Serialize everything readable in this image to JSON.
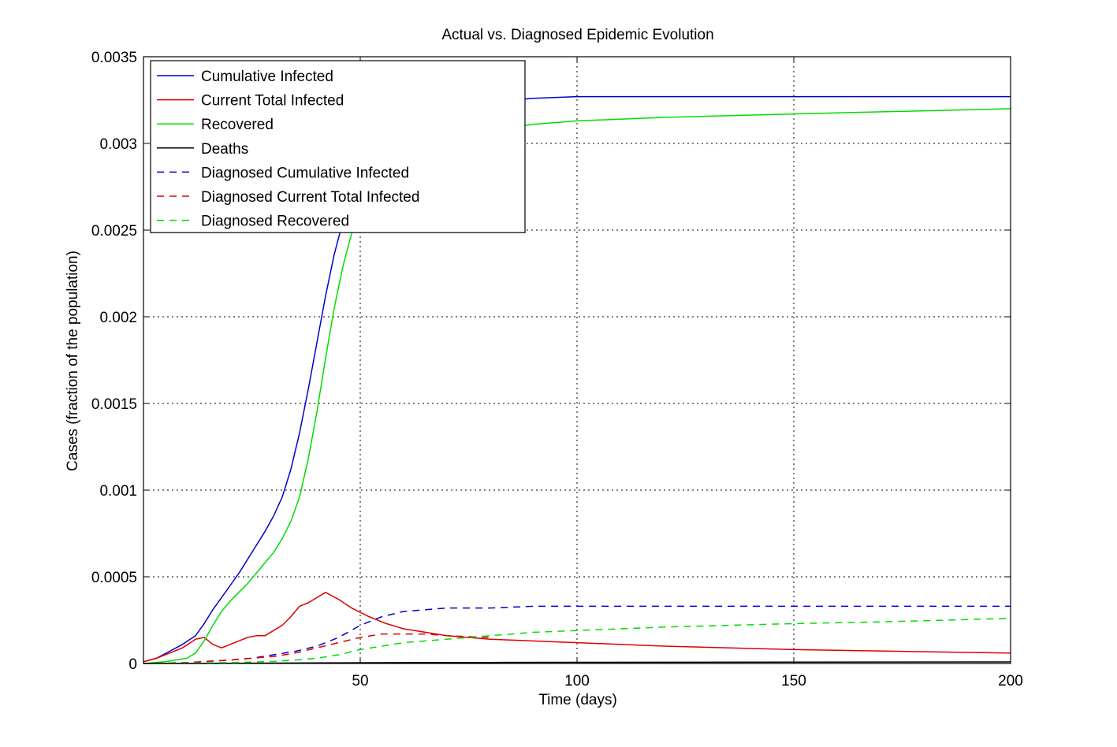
{
  "chart_data": {
    "type": "line",
    "title": "Actual vs. Diagnosed Epidemic Evolution",
    "xlabel": "Time (days)",
    "ylabel": "Cases (fraction of the population)",
    "xlim": [
      0,
      200
    ],
    "ylim": [
      0,
      0.0035
    ],
    "xticks": [
      50,
      100,
      150,
      200
    ],
    "xtick_labels": [
      "50",
      "100",
      "150",
      "200"
    ],
    "yticks": [
      0,
      0.0005,
      0.001,
      0.0015,
      0.002,
      0.0025,
      0.003,
      0.0035
    ],
    "ytick_labels": [
      "0",
      "0.0005",
      "0.001",
      "0.0015",
      "0.002",
      "0.0025",
      "0.003",
      "0.0035"
    ],
    "grid": true,
    "legend_position": "top-left",
    "series": [
      {
        "name": "Cumulative Infected",
        "color": "#0000cc",
        "dash": "solid",
        "x": [
          0,
          3,
          6,
          9,
          12,
          14,
          16,
          18,
          20,
          22,
          24,
          26,
          28,
          30,
          32,
          34,
          36,
          38,
          40,
          42,
          44,
          46,
          48,
          50,
          53,
          56,
          60,
          65,
          70,
          75,
          80,
          90,
          100,
          120,
          150,
          200
        ],
        "y": [
          1e-05,
          3e-05,
          7e-05,
          0.00011,
          0.00016,
          0.00023,
          0.00031,
          0.00038,
          0.00045,
          0.00052,
          0.0006,
          0.00068,
          0.00076,
          0.00085,
          0.00096,
          0.00112,
          0.00133,
          0.00158,
          0.00185,
          0.00212,
          0.00236,
          0.00255,
          0.0027,
          0.0028,
          0.00292,
          0.003,
          0.00308,
          0.00315,
          0.00319,
          0.00322,
          0.00324,
          0.00326,
          0.00327,
          0.00327,
          0.00327,
          0.00327
        ]
      },
      {
        "name": "Current Total Infected",
        "color": "#dd0000",
        "dash": "solid",
        "x": [
          0,
          3,
          6,
          9,
          12,
          14,
          16,
          18,
          20,
          22,
          24,
          26,
          28,
          30,
          32,
          34,
          36,
          38,
          40,
          42,
          45,
          48,
          52,
          56,
          60,
          70,
          80,
          100,
          120,
          150,
          200
        ],
        "y": [
          1e-05,
          3e-05,
          6e-05,
          9e-05,
          0.00014,
          0.00015,
          0.00011,
          9e-05,
          0.00011,
          0.00013,
          0.00015,
          0.00016,
          0.00016,
          0.00019,
          0.00022,
          0.00027,
          0.00033,
          0.00035,
          0.00038,
          0.00041,
          0.00037,
          0.00032,
          0.00027,
          0.00023,
          0.0002,
          0.00016,
          0.00014,
          0.00012,
          0.0001,
          8e-05,
          6e-05
        ]
      },
      {
        "name": "Recovered",
        "color": "#00dd00",
        "dash": "solid",
        "x": [
          0,
          5,
          10,
          12,
          14,
          16,
          18,
          20,
          22,
          24,
          26,
          28,
          30,
          32,
          34,
          36,
          38,
          40,
          42,
          44,
          46,
          48,
          50,
          53,
          56,
          60,
          65,
          70,
          80,
          90,
          100,
          120,
          150,
          200
        ],
        "y": [
          0,
          1e-05,
          3e-05,
          6e-05,
          0.00013,
          0.00022,
          0.0003,
          0.00036,
          0.00041,
          0.00046,
          0.00052,
          0.00058,
          0.00064,
          0.00072,
          0.00082,
          0.00096,
          0.00118,
          0.00145,
          0.00176,
          0.00205,
          0.00229,
          0.00248,
          0.00262,
          0.00276,
          0.00285,
          0.00293,
          0.00299,
          0.00303,
          0.00308,
          0.00311,
          0.00313,
          0.00315,
          0.00317,
          0.0032
        ]
      },
      {
        "name": "Deaths",
        "color": "#000000",
        "dash": "solid",
        "x": [
          0,
          20,
          40,
          60,
          80,
          100,
          150,
          200
        ],
        "y": [
          0,
          1e-06,
          3e-06,
          5e-06,
          6e-06,
          7e-06,
          8e-06,
          9e-06
        ]
      },
      {
        "name": "Diagnosed Cumulative Infected",
        "color": "#0000cc",
        "dash": "dashed",
        "x": [
          0,
          10,
          20,
          25,
          30,
          35,
          40,
          45,
          50,
          55,
          60,
          65,
          70,
          80,
          90,
          100,
          150,
          200
        ],
        "y": [
          0,
          5e-06,
          2e-05,
          3e-05,
          5e-05,
          7e-05,
          0.0001,
          0.00015,
          0.00022,
          0.00027,
          0.0003,
          0.00031,
          0.00032,
          0.00032,
          0.00033,
          0.00033,
          0.00033,
          0.00033
        ]
      },
      {
        "name": "Diagnosed Current Total Infected",
        "color": "#dd0000",
        "dash": "dashed",
        "x": [
          0,
          10,
          20,
          25,
          30,
          35,
          40,
          45,
          50,
          55,
          60,
          65,
          70,
          80
        ],
        "y": [
          0,
          5e-06,
          2e-05,
          3e-05,
          4e-05,
          6e-05,
          9e-05,
          0.00012,
          0.00015,
          0.00017,
          0.00017,
          0.00017,
          0.00016,
          0.00015
        ]
      },
      {
        "name": "Diagnosed Recovered",
        "color": "#00dd00",
        "dash": "dashed",
        "x": [
          0,
          20,
          30,
          35,
          40,
          45,
          50,
          55,
          60,
          65,
          70,
          75,
          80,
          90,
          100,
          120,
          150,
          170,
          200
        ],
        "y": [
          0,
          5e-06,
          1.2e-05,
          2e-05,
          3e-05,
          5e-05,
          8e-05,
          0.0001,
          0.00012,
          0.00013,
          0.00014,
          0.00015,
          0.00016,
          0.00018,
          0.00019,
          0.00021,
          0.00023,
          0.00024,
          0.00026
        ]
      }
    ]
  }
}
